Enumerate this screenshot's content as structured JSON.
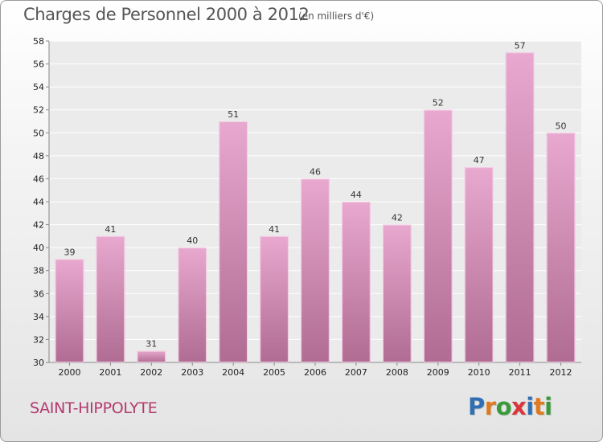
{
  "title": "Charges de Personnel 2000 à 2012",
  "subtitle": "(en milliers d'€)",
  "commune": "SAINT-HIPPOLYTE",
  "logo": {
    "letters": [
      "P",
      "r",
      "o",
      "x",
      "i",
      "t",
      "i"
    ],
    "colors": [
      "#2f6fb3",
      "#e07a1f",
      "#3a9a3a",
      "#d8363a",
      "#2f6fb3",
      "#e07a1f",
      "#3a9a3a"
    ]
  },
  "colors": {
    "bar_top": "#e8a8cf",
    "bar_bottom": "#b06c92",
    "bar_edge": "#f4cde4"
  },
  "chart_data": {
    "type": "bar",
    "title": "Charges de Personnel 2000 à 2012",
    "subtitle": "(en milliers d'€)",
    "categories": [
      "2000",
      "2001",
      "2002",
      "2003",
      "2004",
      "2005",
      "2006",
      "2007",
      "2008",
      "2009",
      "2010",
      "2011",
      "2012"
    ],
    "values": [
      39,
      41,
      31,
      40,
      51,
      41,
      46,
      44,
      42,
      52,
      47,
      57,
      50
    ],
    "ylim": [
      30,
      58
    ],
    "yticks": [
      30,
      32,
      34,
      36,
      38,
      40,
      42,
      44,
      46,
      48,
      50,
      52,
      54,
      56,
      58
    ],
    "grid": true,
    "xlabel": "",
    "ylabel": ""
  }
}
